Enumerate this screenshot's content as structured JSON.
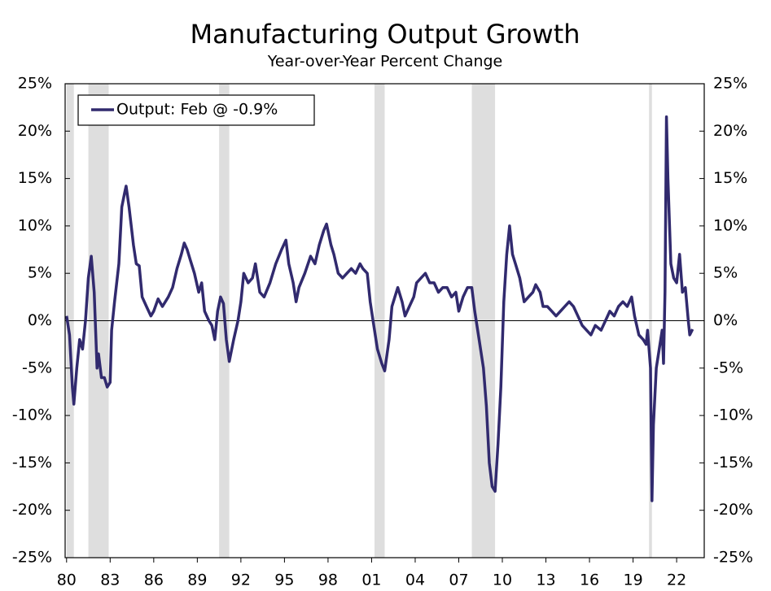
{
  "chart_data": {
    "type": "line",
    "title": "Manufacturing Output Growth",
    "subtitle": "Year-over-Year Percent Change",
    "x": [
      1980.0,
      1980.2,
      1980.4,
      1980.5,
      1980.7,
      1980.9,
      1981.1,
      1981.3,
      1981.5,
      1981.7,
      1981.9,
      1982.1,
      1982.2,
      1982.4,
      1982.6,
      1982.8,
      1983.0,
      1983.1,
      1983.3,
      1983.6,
      1983.8,
      1984.0,
      1984.1,
      1984.3,
      1984.6,
      1984.8,
      1985.0,
      1985.2,
      1985.5,
      1985.8,
      1986.0,
      1986.3,
      1986.6,
      1987.0,
      1987.3,
      1987.6,
      1987.9,
      1988.1,
      1988.3,
      1988.5,
      1988.8,
      1989.1,
      1989.3,
      1989.5,
      1989.8,
      1990.0,
      1990.2,
      1990.4,
      1990.6,
      1990.8,
      1991.0,
      1991.2,
      1991.5,
      1991.8,
      1992.0,
      1992.2,
      1992.5,
      1992.8,
      1993.0,
      1993.3,
      1993.6,
      1994.0,
      1994.4,
      1994.8,
      1995.1,
      1995.3,
      1995.6,
      1995.8,
      1996.0,
      1996.4,
      1996.8,
      1997.1,
      1997.4,
      1997.7,
      1997.9,
      1998.2,
      1998.4,
      1998.7,
      1999.0,
      1999.3,
      1999.6,
      1999.9,
      2000.2,
      2000.4,
      2000.7,
      2000.9,
      2001.1,
      2001.4,
      2001.7,
      2001.9,
      2002.2,
      2002.4,
      2002.6,
      2002.8,
      2003.1,
      2003.3,
      2003.6,
      2003.9,
      2004.1,
      2004.4,
      2004.7,
      2005.0,
      2005.3,
      2005.6,
      2005.9,
      2006.2,
      2006.5,
      2006.8,
      2007.0,
      2007.3,
      2007.6,
      2007.9,
      2008.1,
      2008.4,
      2008.7,
      2008.9,
      2009.1,
      2009.3,
      2009.5,
      2009.7,
      2009.9,
      2010.1,
      2010.3,
      2010.5,
      2010.7,
      2010.9,
      2011.2,
      2011.5,
      2011.8,
      2012.1,
      2012.3,
      2012.6,
      2012.8,
      2013.1,
      2013.4,
      2013.7,
      2014.0,
      2014.3,
      2014.6,
      2014.9,
      2015.2,
      2015.5,
      2015.8,
      2016.1,
      2016.4,
      2016.8,
      2017.1,
      2017.4,
      2017.7,
      2018.0,
      2018.3,
      2018.6,
      2018.9,
      2019.1,
      2019.4,
      2019.7,
      2019.9,
      2020.0,
      2020.2,
      2020.3,
      2020.4,
      2020.6,
      2020.8,
      2021.0,
      2021.1,
      2021.2,
      2021.3,
      2021.4,
      2021.6,
      2021.8,
      2022.0,
      2022.2,
      2022.4,
      2022.6,
      2022.8,
      2022.9,
      2023.1
    ],
    "series": [
      {
        "name": "Output: Feb @ -0.9%",
        "color": "#312a6e",
        "values": [
          0.5,
          -1.5,
          -7,
          -8.8,
          -5,
          -2,
          -3,
          0,
          4.5,
          6.8,
          3,
          -5,
          -3.5,
          -6,
          -6,
          -7,
          -6.5,
          -1,
          2,
          6,
          12,
          13.5,
          14.2,
          12,
          8,
          6,
          5.8,
          2.5,
          1.5,
          0.5,
          1,
          2.3,
          1.5,
          2.5,
          3.5,
          5.5,
          7,
          8.2,
          7.5,
          6.5,
          5,
          3,
          4,
          1,
          0,
          -0.5,
          -2,
          1,
          2.5,
          1.8,
          -2,
          -4.3,
          -2,
          0,
          2,
          5,
          4,
          4.5,
          6,
          3,
          2.5,
          4,
          6,
          7.5,
          8.5,
          6,
          4,
          2,
          3.5,
          5,
          6.8,
          6,
          8,
          9.5,
          10.2,
          8,
          7,
          5,
          4.5,
          5,
          5.5,
          5,
          6,
          5.5,
          5,
          2,
          0,
          -3,
          -4.5,
          -5.3,
          -2,
          1.5,
          2.5,
          3.5,
          2,
          0.5,
          1.5,
          2.5,
          4,
          4.5,
          5,
          4,
          4,
          3,
          3.5,
          3.5,
          2.5,
          3,
          1,
          2.5,
          3.5,
          3.5,
          1,
          -2,
          -5,
          -9,
          -15,
          -17.5,
          -18,
          -13,
          -7,
          2,
          7,
          10,
          7,
          6,
          4.5,
          2,
          2.5,
          3,
          3.8,
          3,
          1.5,
          1.5,
          1,
          0.5,
          1,
          1.5,
          2,
          1.5,
          0.5,
          -0.5,
          -1,
          -1.5,
          -0.5,
          -1,
          0,
          1,
          0.5,
          1.5,
          2,
          1.5,
          2.5,
          0.5,
          -1.5,
          -2,
          -2.5,
          -1,
          -5,
          -19,
          -11,
          -5,
          -3,
          -1,
          -4.5,
          3,
          21.5,
          15,
          6,
          4.5,
          4,
          7,
          3,
          3.5,
          0,
          -1.5,
          -0.9
        ]
      }
    ],
    "shading": [
      [
        1980.0,
        1980.5
      ],
      [
        1981.5,
        1982.9
      ],
      [
        1990.5,
        1991.2
      ],
      [
        2001.2,
        2001.9
      ],
      [
        2007.9,
        2009.5
      ],
      [
        2020.1,
        2020.3
      ]
    ],
    "shading_color": "#dedede",
    "xlim": [
      1979.9,
      2023.9
    ],
    "xticks": [
      {
        "value": 1980,
        "label": "80"
      },
      {
        "value": 1983,
        "label": "83"
      },
      {
        "value": 1986,
        "label": "86"
      },
      {
        "value": 1989,
        "label": "89"
      },
      {
        "value": 1992,
        "label": "92"
      },
      {
        "value": 1995,
        "label": "95"
      },
      {
        "value": 1998,
        "label": "98"
      },
      {
        "value": 2001,
        "label": "01"
      },
      {
        "value": 2004,
        "label": "04"
      },
      {
        "value": 2007,
        "label": "07"
      },
      {
        "value": 2010,
        "label": "10"
      },
      {
        "value": 2013,
        "label": "13"
      },
      {
        "value": 2016,
        "label": "16"
      },
      {
        "value": 2019,
        "label": "19"
      },
      {
        "value": 2022,
        "label": "22"
      }
    ],
    "ylim": [
      -25,
      25
    ],
    "yticks": [
      {
        "value": -25,
        "label": "-25%"
      },
      {
        "value": -20,
        "label": "-20%"
      },
      {
        "value": -15,
        "label": "-15%"
      },
      {
        "value": -10,
        "label": "-10%"
      },
      {
        "value": -5,
        "label": "-5%"
      },
      {
        "value": 0,
        "label": "0%"
      },
      {
        "value": 5,
        "label": "5%"
      },
      {
        "value": 10,
        "label": "10%"
      },
      {
        "value": 15,
        "label": "15%"
      },
      {
        "value": 20,
        "label": "20%"
      },
      {
        "value": 25,
        "label": "25%"
      }
    ],
    "y2lim": [
      -25,
      25
    ],
    "y2ticks": [
      {
        "value": -25,
        "label": "-25%"
      },
      {
        "value": -20,
        "label": "-20%"
      },
      {
        "value": -15,
        "label": "-15%"
      },
      {
        "value": -10,
        "label": "-10%"
      },
      {
        "value": -5,
        "label": "-5%"
      },
      {
        "value": 0,
        "label": "0%"
      },
      {
        "value": 5,
        "label": "5%"
      },
      {
        "value": 10,
        "label": "10%"
      },
      {
        "value": 15,
        "label": "15%"
      },
      {
        "value": 20,
        "label": "20%"
      },
      {
        "value": 25,
        "label": "25%"
      }
    ],
    "grid": false,
    "legend": "upper left"
  }
}
